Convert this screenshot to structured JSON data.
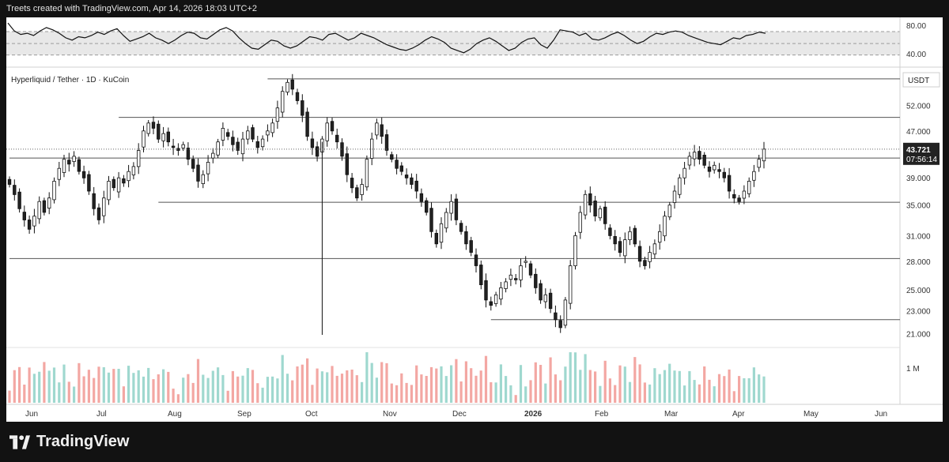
{
  "header": {
    "text": "Treets created with TradingView.com, Apr 14, 2026 18:03 UTC+2"
  },
  "footer": {
    "brand": "TradingView"
  },
  "chart_data": [
    {
      "type": "line",
      "panel": "oscillator",
      "y_ticks": [
        "80.00",
        "40.00"
      ],
      "ylim": [
        15,
        95
      ],
      "bands": [
        73,
        52,
        32
      ],
      "series": [
        {
          "values": [
            88,
            74,
            68,
            70,
            66,
            74,
            80,
            76,
            70,
            62,
            58,
            64,
            62,
            66,
            72,
            68,
            74,
            78,
            66,
            56,
            60,
            64,
            70,
            62,
            58,
            52,
            58,
            66,
            72,
            70,
            62,
            60,
            68,
            76,
            80,
            74,
            62,
            52,
            44,
            42,
            50,
            58,
            56,
            48,
            44,
            48,
            56,
            64,
            62,
            58,
            68,
            70,
            64,
            58,
            62,
            70,
            66,
            62,
            56,
            50,
            46,
            42,
            40,
            44,
            50,
            58,
            64,
            60,
            54,
            44,
            40,
            36,
            42,
            52,
            58,
            62,
            56,
            48,
            40,
            44,
            54,
            60,
            62,
            50,
            44,
            58,
            76,
            74,
            72,
            66,
            70,
            60,
            58,
            62,
            68,
            72,
            66,
            58,
            52,
            56,
            64,
            70,
            68,
            72,
            74,
            72,
            66,
            62,
            58,
            54,
            52,
            50,
            56,
            62,
            60,
            66,
            68,
            72,
            70
          ]
        }
      ]
    },
    {
      "type": "candlestick",
      "panel": "price",
      "title": "Hyperliquid / Tether · 1D · KuCoin",
      "currency": "USDT",
      "y_ticks": [
        "52.000",
        "47.000",
        "43.000",
        "39.000",
        "35.000",
        "31.000",
        "28.000",
        "25.000",
        "23.000",
        "21.000"
      ],
      "ylim": [
        20,
        60
      ],
      "last_price": "43.721",
      "countdown": "07:56:14",
      "levels": [
        57.8,
        49.6,
        42.2,
        35.4,
        28.3,
        22.2
      ],
      "spike_low": 20.9,
      "x_labels": [
        "Jun",
        "Jul",
        "Aug",
        "Sep",
        "Oct",
        "Nov",
        "Dec",
        "2026",
        "Feb",
        "Mar",
        "Apr",
        "May",
        "Jun"
      ],
      "closes": [
        38.0,
        36.5,
        34.5,
        33.0,
        31.8,
        33.5,
        35.5,
        34.0,
        36.0,
        38.5,
        40.5,
        42.0,
        41.2,
        42.5,
        40.0,
        39.0,
        37.0,
        34.5,
        33.0,
        36.0,
        38.5,
        37.5,
        39.0,
        38.2,
        40.0,
        40.8,
        43.5,
        47.0,
        48.5,
        47.5,
        45.5,
        46.5,
        45.0,
        44.0,
        43.5,
        44.5,
        42.0,
        40.5,
        38.5,
        39.5,
        41.5,
        43.0,
        45.0,
        47.5,
        46.0,
        44.5,
        43.5,
        45.5,
        47.0,
        45.5,
        44.0,
        45.5,
        47.0,
        48.5,
        51.5,
        55.0,
        57.0,
        55.5,
        53.0,
        50.0,
        46.0,
        44.0,
        42.5,
        45.5,
        48.5,
        47.0,
        45.0,
        42.5,
        39.5,
        37.5,
        36.0,
        38.0,
        42.0,
        45.5,
        48.5,
        46.0,
        43.5,
        42.0,
        40.5,
        40.0,
        39.0,
        38.0,
        37.0,
        35.5,
        34.0,
        31.5,
        30.0,
        32.5,
        34.0,
        35.5,
        33.0,
        31.5,
        30.0,
        29.0,
        27.5,
        25.5,
        24.0,
        23.5,
        24.5,
        25.2,
        25.8,
        26.5,
        26.0,
        27.5,
        28.0,
        26.5,
        25.2,
        24.0,
        24.5,
        23.2,
        22.2,
        21.5,
        24.0,
        27.5,
        31.0,
        34.0,
        36.5,
        35.0,
        33.5,
        34.5,
        32.5,
        31.0,
        30.0,
        29.0,
        30.5,
        31.5,
        30.0,
        28.0,
        27.5,
        29.0,
        30.0,
        31.5,
        33.5,
        35.0,
        37.0,
        39.0,
        40.5,
        42.5,
        43.2,
        42.0,
        41.0,
        40.0,
        41.0,
        40.0,
        39.0,
        37.0,
        36.0,
        35.5,
        37.0,
        38.5,
        40.0,
        42.0,
        43.721
      ],
      "volume": {
        "y_tick": "1 M",
        "max": 1.0
      }
    }
  ]
}
